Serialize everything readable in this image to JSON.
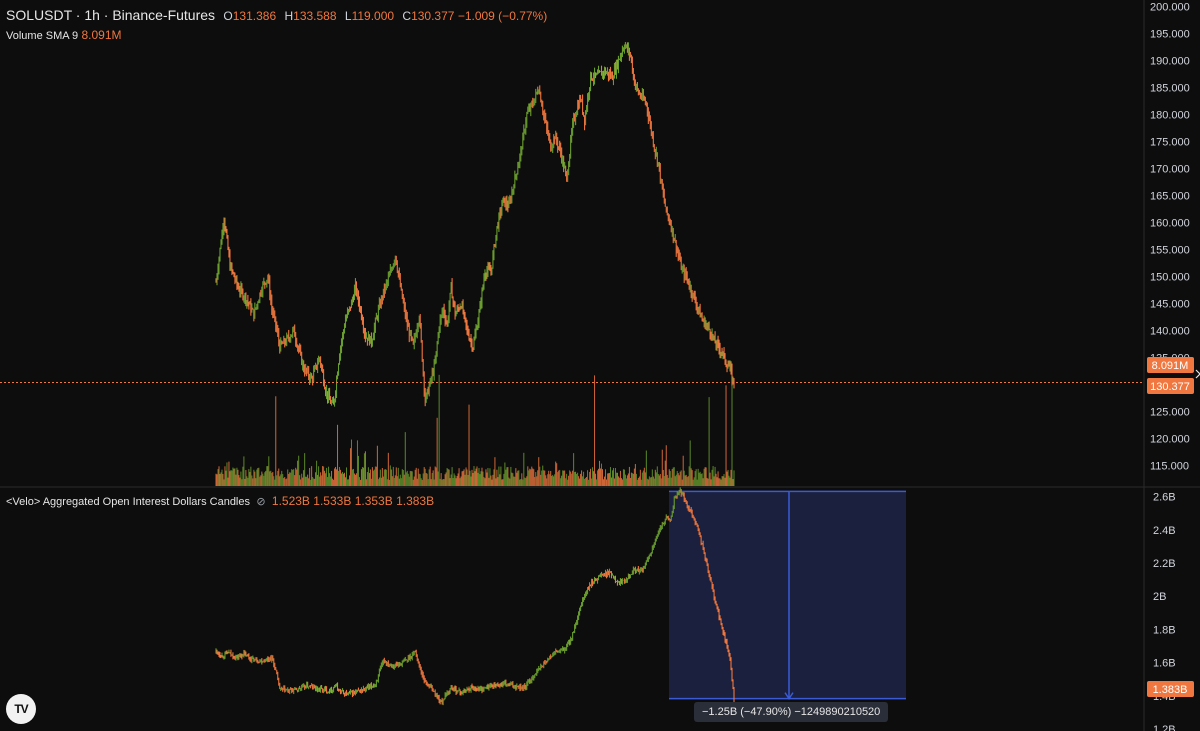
{
  "header": {
    "symbol": "SOLUSDT · 1h · Binance-Futures",
    "o_label": "O",
    "o": "131.386",
    "h_label": "H",
    "h": "133.588",
    "l_label": "L",
    "l": "119.000",
    "c_label": "C",
    "c": "130.377",
    "change": "−1.009 (−0.77%)"
  },
  "volume_legend": {
    "label": "Volume SMA 9",
    "value": "8.091M"
  },
  "oi_legend": {
    "label": "<Velo> Aggregated Open Interest Dollars Candles",
    "icon": "eye-off-icon",
    "values": [
      "1.523B",
      "1.533B",
      "1.353B",
      "1.383B"
    ]
  },
  "price_badges": {
    "volume": "8.091M",
    "last": "130.377"
  },
  "oi_badge": "1.383B",
  "measure_text": "−1.25B (−47.90%) −1249890210520",
  "colors": {
    "background": "#0d0d0d",
    "up": "#6a9d2f",
    "down": "#f0773f",
    "price_line": "#f0773f",
    "measure_fill": "#1d2547",
    "measure_line": "#3b5bd6"
  },
  "chart_data": [
    {
      "type": "line",
      "title": "SOLUSDT · 1h · Binance-Futures",
      "xlabel": "",
      "ylabel": "",
      "ylim": [
        111.2,
        201.2
      ],
      "yticks": [
        "200.000",
        "195.000",
        "190.000",
        "185.000",
        "180.000",
        "175.000",
        "170.000",
        "165.000",
        "160.000",
        "155.000",
        "150.000",
        "145.000",
        "140.000",
        "135.000",
        "130.000",
        "125.000",
        "120.000",
        "115.000"
      ],
      "ytick_values": [
        200,
        195,
        190,
        185,
        180,
        175,
        170,
        165,
        160,
        155,
        150,
        145,
        140,
        135,
        130,
        125,
        120,
        115
      ],
      "series": [
        {
          "x": [
            0,
            4,
            8,
            14,
            22,
            30,
            38,
            46,
            52,
            56,
            60,
            64,
            70,
            78,
            88,
            96,
            104,
            110,
            114,
            118,
            124,
            130,
            136,
            140,
            146,
            150,
            156,
            162,
            168,
            174,
            180,
            186,
            192,
            198,
            204,
            210,
            216,
            220,
            224,
            228,
            232,
            236,
            240,
            246,
            252,
            258,
            264,
            270,
            276,
            282,
            288,
            294,
            300,
            306,
            312,
            318,
            324,
            330,
            336,
            340,
            346,
            352,
            358,
            362,
            366,
            370,
            376,
            382,
            390,
            398,
            404,
            410,
            416,
            420,
            424,
            428,
            432,
            436,
            440,
            444,
            448,
            452,
            456,
            460,
            464,
            468,
            472,
            476,
            480,
            484,
            488,
            492,
            496,
            500,
            504,
            508,
            512,
            516,
            518,
            520
          ],
          "y": [
            149,
            155,
            161,
            152,
            148,
            146,
            143,
            148,
            150,
            144,
            141,
            137,
            138,
            140,
            133,
            131,
            135,
            129,
            127,
            126,
            136,
            142,
            145,
            148,
            143,
            139,
            138,
            143,
            147,
            150,
            154,
            147,
            141,
            137,
            143,
            127,
            131,
            134,
            141,
            144,
            141,
            148,
            143,
            145,
            140,
            137,
            143,
            151,
            151,
            159,
            164,
            163,
            168,
            173,
            180,
            182,
            185,
            179,
            174,
            176,
            173,
            168,
            178,
            181,
            183,
            179,
            187,
            187,
            188,
            187,
            190,
            193,
            191,
            186,
            184,
            183,
            182,
            178,
            174,
            171,
            166,
            162,
            160,
            157,
            154,
            151,
            150,
            148,
            146,
            144,
            142,
            141,
            140,
            138,
            137,
            136,
            134,
            133,
            131,
            130.4
          ]
        }
      ],
      "annotations": [
        "last price 130.377"
      ]
    },
    {
      "type": "line",
      "title": "<Velo> Aggregated Open Interest Dollars Candles",
      "ylim": [
        1.188,
        2.652
      ],
      "yticks": [
        "2.6B",
        "2.4B",
        "2.2B",
        "2B",
        "1.8B",
        "1.6B",
        "1.4B",
        "1.2B"
      ],
      "ytick_values": [
        2.6,
        2.4,
        2.2,
        2.0,
        1.8,
        1.6,
        1.4,
        1.2
      ],
      "series": [
        {
          "x": [
            0,
            6,
            12,
            20,
            28,
            36,
            46,
            56,
            60,
            64,
            72,
            82,
            92,
            104,
            114,
            120,
            124,
            130,
            140,
            150,
            160,
            168,
            172,
            178,
            184,
            190,
            196,
            200,
            204,
            210,
            216,
            220,
            226,
            236,
            246,
            256,
            266,
            276,
            290,
            300,
            310,
            320,
            330,
            340,
            350,
            356,
            362,
            368,
            376,
            386,
            396,
            404,
            412,
            420,
            428,
            436,
            444,
            452,
            456,
            460,
            466,
            472,
            478,
            484,
            490,
            496,
            500,
            506,
            512,
            516,
            518,
            520
          ],
          "y": [
            1.67,
            1.64,
            1.66,
            1.63,
            1.65,
            1.62,
            1.61,
            1.63,
            1.55,
            1.44,
            1.43,
            1.44,
            1.46,
            1.44,
            1.43,
            1.46,
            1.43,
            1.41,
            1.42,
            1.44,
            1.47,
            1.61,
            1.6,
            1.58,
            1.59,
            1.61,
            1.64,
            1.67,
            1.58,
            1.48,
            1.45,
            1.41,
            1.36,
            1.45,
            1.42,
            1.45,
            1.44,
            1.46,
            1.47,
            1.46,
            1.45,
            1.53,
            1.6,
            1.66,
            1.68,
            1.74,
            1.84,
            1.98,
            2.07,
            2.13,
            2.14,
            2.08,
            2.11,
            2.16,
            2.15,
            2.26,
            2.38,
            2.48,
            2.45,
            2.58,
            2.64,
            2.56,
            2.5,
            2.4,
            2.26,
            2.1,
            2.0,
            1.85,
            1.72,
            1.62,
            1.49,
            1.383
          ]
        }
      ],
      "annotations": [
        "measure: −1.25B (−47.90%)"
      ]
    }
  ]
}
